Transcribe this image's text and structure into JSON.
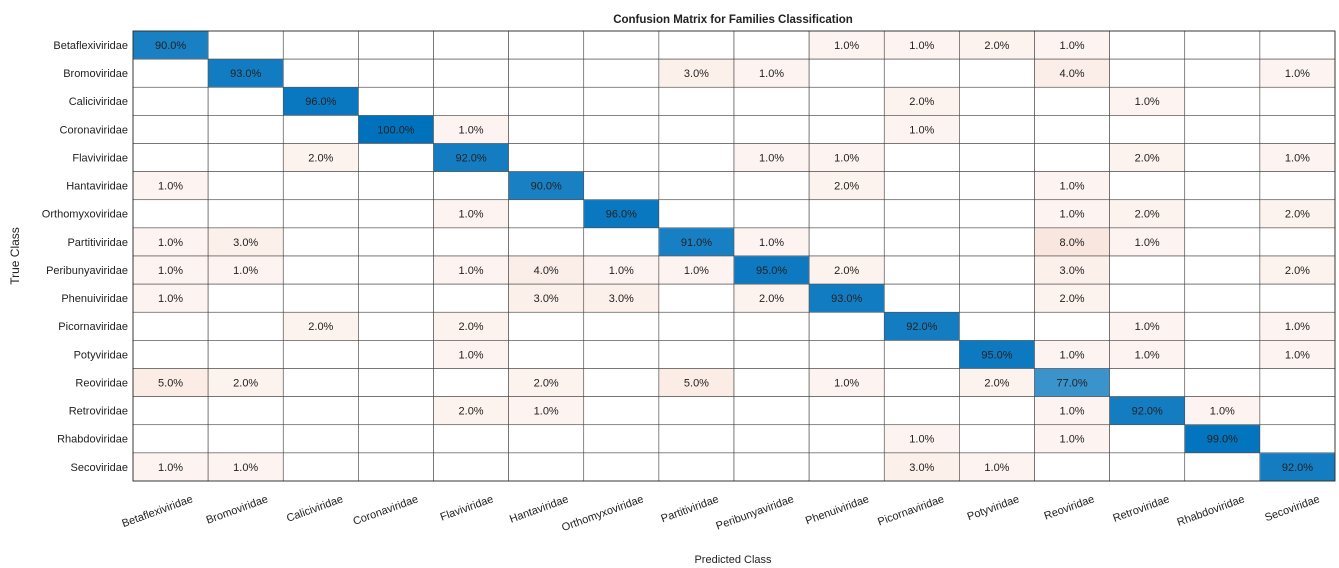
{
  "chart_data": {
    "type": "heatmap",
    "title": "Confusion Matrix for Families Classification",
    "xlabel": "Predicted Class",
    "ylabel": "True Class",
    "diagonal_color": "#0072bd",
    "offdiagonal_color": "#d95319",
    "categories": [
      "Betaflexiviridae",
      "Bromoviridae",
      "Caliciviridae",
      "Coronaviridae",
      "Flaviviridae",
      "Hantaviridae",
      "Orthomyxoviridae",
      "Partitiviridae",
      "Peribunyaviridae",
      "Phenuiviridae",
      "Picornaviridae",
      "Potyviridae",
      "Reoviridae",
      "Retroviridae",
      "Rhabdoviridae",
      "Secoviridae"
    ],
    "rows": [
      "Betaflexiviridae",
      "Bromoviridae",
      "Caliciviridae",
      "Coronaviridae",
      "Flaviviridae",
      "Hantaviridae",
      "Orthomyxoviridae",
      "Partitiviridae",
      "Peribunyaviridae",
      "Phenuiviridae",
      "Picornaviridae",
      "Potyviridae",
      "Reoviridae",
      "Retroviridae",
      "Rhabdoviridae",
      "Secoviridae"
    ],
    "values": [
      [
        90,
        null,
        null,
        null,
        null,
        null,
        null,
        null,
        null,
        1,
        1,
        2,
        1,
        null,
        null,
        null
      ],
      [
        null,
        93,
        null,
        null,
        null,
        null,
        null,
        3,
        1,
        null,
        null,
        null,
        4,
        null,
        null,
        1
      ],
      [
        null,
        null,
        96,
        null,
        null,
        null,
        null,
        null,
        null,
        null,
        2,
        null,
        null,
        1,
        null,
        null
      ],
      [
        null,
        null,
        null,
        100,
        1,
        null,
        null,
        null,
        null,
        null,
        1,
        null,
        null,
        null,
        null,
        null
      ],
      [
        null,
        null,
        2,
        null,
        92,
        null,
        null,
        null,
        1,
        1,
        null,
        null,
        null,
        2,
        null,
        1
      ],
      [
        1,
        null,
        null,
        null,
        null,
        90,
        null,
        null,
        null,
        2,
        null,
        null,
        1,
        null,
        null,
        null
      ],
      [
        null,
        null,
        null,
        null,
        1,
        null,
        96,
        null,
        null,
        null,
        null,
        null,
        1,
        2,
        null,
        2
      ],
      [
        1,
        3,
        null,
        null,
        null,
        null,
        null,
        91,
        1,
        null,
        null,
        null,
        8,
        1,
        null,
        null
      ],
      [
        1,
        1,
        null,
        null,
        1,
        4,
        1,
        1,
        95,
        2,
        null,
        null,
        3,
        null,
        null,
        2
      ],
      [
        1,
        null,
        null,
        null,
        null,
        3,
        3,
        null,
        2,
        93,
        null,
        null,
        2,
        null,
        null,
        null
      ],
      [
        null,
        null,
        2,
        null,
        2,
        null,
        null,
        null,
        null,
        null,
        92,
        null,
        null,
        1,
        null,
        1
      ],
      [
        null,
        null,
        null,
        null,
        1,
        null,
        null,
        null,
        null,
        null,
        null,
        95,
        1,
        1,
        null,
        1
      ],
      [
        5,
        2,
        null,
        null,
        null,
        2,
        null,
        5,
        null,
        1,
        null,
        2,
        77,
        null,
        null,
        null
      ],
      [
        null,
        null,
        null,
        null,
        2,
        1,
        null,
        null,
        null,
        null,
        null,
        null,
        1,
        92,
        1,
        null
      ],
      [
        null,
        null,
        null,
        null,
        null,
        null,
        null,
        null,
        null,
        null,
        1,
        null,
        1,
        null,
        99,
        null
      ],
      [
        1,
        1,
        null,
        null,
        null,
        null,
        null,
        null,
        null,
        null,
        3,
        1,
        null,
        null,
        null,
        92
      ]
    ],
    "value_labels": [
      [
        "90.0%",
        null,
        null,
        null,
        null,
        null,
        null,
        null,
        null,
        "1.0%",
        "1.0%",
        "2.0%",
        "1.0%",
        null,
        null,
        null
      ],
      [
        null,
        "93.0%",
        null,
        null,
        null,
        null,
        null,
        "3.0%",
        "1.0%",
        null,
        null,
        null,
        "4.0%",
        null,
        null,
        "1.0%"
      ],
      [
        null,
        null,
        "96.0%",
        null,
        null,
        null,
        null,
        null,
        null,
        null,
        "2.0%",
        null,
        null,
        "1.0%",
        null,
        null
      ],
      [
        null,
        null,
        null,
        "100.0%",
        "1.0%",
        null,
        null,
        null,
        null,
        null,
        "1.0%",
        null,
        null,
        null,
        null,
        null
      ],
      [
        null,
        null,
        "2.0%",
        null,
        "92.0%",
        null,
        null,
        null,
        "1.0%",
        "1.0%",
        null,
        null,
        null,
        "2.0%",
        null,
        "1.0%"
      ],
      [
        "1.0%",
        null,
        null,
        null,
        null,
        "90.0%",
        null,
        null,
        null,
        "2.0%",
        null,
        null,
        "1.0%",
        null,
        null,
        null
      ],
      [
        null,
        null,
        null,
        null,
        "1.0%",
        null,
        "96.0%",
        null,
        null,
        null,
        null,
        null,
        "1.0%",
        "2.0%",
        null,
        "2.0%"
      ],
      [
        "1.0%",
        "3.0%",
        null,
        null,
        null,
        null,
        null,
        "91.0%",
        "1.0%",
        null,
        null,
        null,
        "8.0%",
        "1.0%",
        null,
        null
      ],
      [
        "1.0%",
        "1.0%",
        null,
        null,
        "1.0%",
        "4.0%",
        "1.0%",
        "1.0%",
        "95.0%",
        "2.0%",
        null,
        null,
        "3.0%",
        null,
        null,
        "2.0%"
      ],
      [
        "1.0%",
        null,
        null,
        null,
        null,
        "3.0%",
        "3.0%",
        null,
        "2.0%",
        "93.0%",
        null,
        null,
        "2.0%",
        null,
        null,
        null
      ],
      [
        null,
        null,
        "2.0%",
        null,
        "2.0%",
        null,
        null,
        null,
        null,
        null,
        "92.0%",
        null,
        null,
        "1.0%",
        null,
        "1.0%"
      ],
      [
        null,
        null,
        null,
        null,
        "1.0%",
        null,
        null,
        null,
        null,
        null,
        null,
        "95.0%",
        "1.0%",
        "1.0%",
        null,
        "1.0%"
      ],
      [
        "5.0%",
        "2.0%",
        null,
        null,
        null,
        "2.0%",
        null,
        "5.0%",
        null,
        "1.0%",
        null,
        "2.0%",
        "77.0%",
        null,
        null,
        null
      ],
      [
        null,
        null,
        null,
        null,
        "2.0%",
        "1.0%",
        null,
        null,
        null,
        null,
        null,
        null,
        "1.0%",
        "92.0%",
        "1.0%",
        null
      ],
      [
        null,
        null,
        null,
        null,
        null,
        null,
        null,
        null,
        null,
        null,
        "1.0%",
        null,
        "1.0%",
        null,
        "99.0%",
        null
      ],
      [
        "1.0%",
        "1.0%",
        null,
        null,
        null,
        null,
        null,
        null,
        null,
        null,
        "3.0%",
        "1.0%",
        null,
        null,
        null,
        "92.0%"
      ]
    ]
  }
}
